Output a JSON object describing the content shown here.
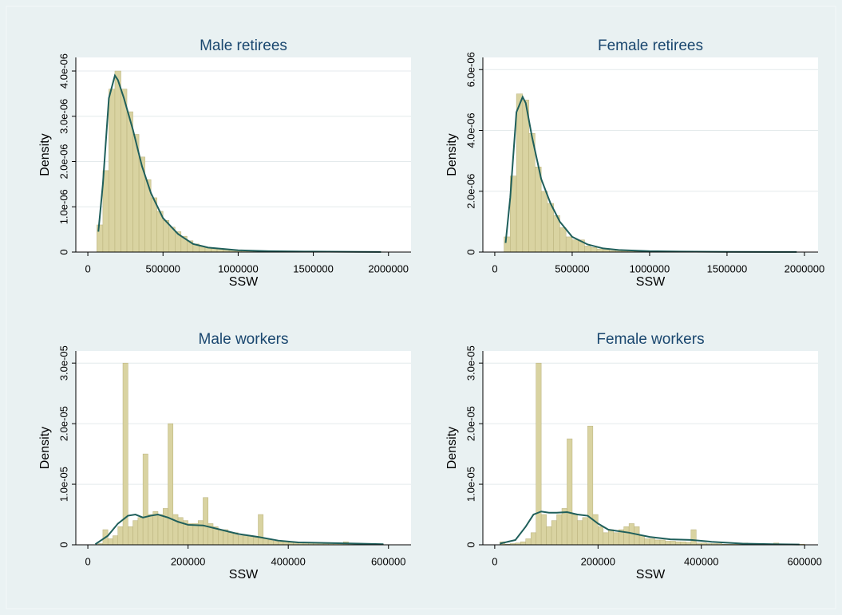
{
  "chart_data": [
    {
      "type": "histogram",
      "title": "Male retirees",
      "xlabel": "SSW",
      "ylabel": "Density",
      "bins": [
        60000,
        100000,
        140000,
        180000,
        220000,
        260000,
        300000,
        340000,
        380000,
        420000,
        460000,
        500000,
        540000,
        580000,
        620000,
        660000,
        700000,
        740000,
        780000,
        820000,
        860000,
        900000,
        940000,
        980000,
        1020000,
        1060000,
        1100000,
        1140000,
        1180000,
        1220000,
        1260000,
        1300000,
        1340000,
        1380000,
        1420000,
        1460000,
        1500000,
        1540000,
        1580000,
        1620000,
        1660000,
        1700000,
        1740000,
        1780000,
        1820000,
        1860000,
        1900000,
        1940000,
        1980000
      ],
      "values": [
        6e-07,
        1.8e-06,
        3.6e-06,
        4e-06,
        3.6e-06,
        3.1e-06,
        2.6e-06,
        2.1e-06,
        1.6e-06,
        1.2e-06,
        9e-07,
        7e-07,
        5.5e-07,
        4.5e-07,
        3.5e-07,
        2.5e-07,
        1.8e-07,
        1.3e-07,
        1e-07,
        8e-08,
        7e-08,
        5e-08,
        4e-08,
        4e-08,
        3e-08,
        3e-08,
        2e-08,
        2e-08,
        2e-08,
        1e-08,
        1e-08,
        1e-08,
        1e-08,
        5e-09,
        5e-09,
        5e-09,
        5e-09,
        5e-09,
        5e-09,
        5e-09,
        5e-09,
        5e-09,
        5e-09,
        5e-09,
        5e-09,
        5e-09,
        5e-09,
        5e-09
      ],
      "color": "#d9d3a1",
      "kde": {
        "x": [
          70000,
          100000,
          140000,
          180000,
          200000,
          240000,
          300000,
          360000,
          420000,
          500000,
          600000,
          700000,
          800000,
          1000000,
          1200000,
          1500000,
          1800000,
          1950000
        ],
        "values": [
          4.5e-07,
          1.5e-06,
          3.4e-06,
          3.9e-06,
          3.8e-06,
          3.4e-06,
          2.7e-06,
          1.9e-06,
          1.3e-06,
          7.5e-07,
          4e-07,
          1.8e-07,
          1e-07,
          4e-08,
          2e-08,
          1e-08,
          5e-09,
          3e-09
        ],
        "color": "#1f5f5b"
      },
      "xlim": [
        -80000,
        2150000
      ],
      "ylim": [
        0,
        4.3e-06
      ],
      "xticks": [
        0,
        500000,
        1000000,
        1500000,
        2000000
      ],
      "yticks": [
        0,
        {
          "value": 1e-06,
          "label": "1.0e-06"
        },
        {
          "value": 2e-06,
          "label": "2.0e-06"
        },
        {
          "value": 3e-06,
          "label": "3.0e-06"
        },
        {
          "value": 4e-06,
          "label": "4.0e-06"
        }
      ],
      "grid": true
    },
    {
      "type": "histogram",
      "title": "Female retirees",
      "xlabel": "SSW",
      "ylabel": "Density",
      "bins": [
        60000,
        100000,
        140000,
        180000,
        220000,
        260000,
        300000,
        340000,
        380000,
        420000,
        460000,
        500000,
        540000,
        580000,
        620000,
        660000,
        700000,
        740000,
        780000,
        820000,
        860000,
        900000,
        940000,
        980000,
        1020000,
        1060000,
        1100000,
        1140000,
        1180000,
        1220000,
        1260000,
        1300000,
        1340000,
        1380000,
        1420000,
        1460000,
        1500000,
        1540000,
        1580000,
        1620000,
        1660000,
        1700000,
        1740000,
        1780000,
        1820000,
        1860000,
        1900000,
        1940000,
        1980000
      ],
      "values": [
        5e-07,
        2.5e-06,
        5.2e-06,
        5e-06,
        3.9e-06,
        2.8e-06,
        2e-06,
        1.6e-06,
        1.2e-06,
        8e-07,
        5e-07,
        4e-07,
        4e-07,
        2e-07,
        1.5e-07,
        1e-07,
        8e-08,
        5e-08,
        4e-08,
        3e-08,
        3e-08,
        2e-08,
        2e-08,
        2e-08,
        1e-08,
        1e-08,
        1e-08,
        1e-08,
        1e-08,
        1e-08,
        5e-09,
        5e-09,
        5e-09,
        5e-09,
        5e-09,
        5e-09,
        5e-09,
        5e-09,
        5e-09,
        5e-09,
        5e-09,
        5e-09,
        5e-09,
        5e-09,
        5e-09,
        5e-09,
        5e-09,
        5e-09
      ],
      "color": "#d9d3a1",
      "kde": {
        "x": [
          70000,
          100000,
          140000,
          180000,
          200000,
          240000,
          300000,
          360000,
          420000,
          500000,
          600000,
          700000,
          800000,
          1000000,
          1200000,
          1500000,
          1800000,
          1950000
        ],
        "values": [
          3e-07,
          1.8e-06,
          4.6e-06,
          5.1e-06,
          4.9e-06,
          3.8e-06,
          2.4e-06,
          1.6e-06,
          1e-06,
          5e-07,
          2.5e-07,
          1.2e-07,
          7e-08,
          3e-08,
          1.5e-08,
          8e-09,
          4e-09,
          2e-09
        ],
        "color": "#1f5f5b"
      },
      "xlim": [
        -77000,
        2088000
      ],
      "ylim": [
        0,
        6.4e-06
      ],
      "xticks": [
        0,
        500000,
        1000000,
        1500000,
        2000000
      ],
      "yticks": [
        0,
        {
          "value": 2e-06,
          "label": "2.0e-06"
        },
        {
          "value": 4e-06,
          "label": "4.0e-06"
        },
        {
          "value": 6e-06,
          "label": "6.0e-06"
        }
      ],
      "grid": true
    },
    {
      "type": "histogram",
      "title": "Male workers",
      "xlabel": "SSW",
      "ylabel": "Density",
      "bins": [
        20000,
        30000,
        40000,
        50000,
        60000,
        70000,
        80000,
        90000,
        100000,
        110000,
        120000,
        130000,
        140000,
        150000,
        160000,
        170000,
        180000,
        190000,
        200000,
        210000,
        220000,
        230000,
        240000,
        250000,
        260000,
        270000,
        280000,
        290000,
        300000,
        310000,
        320000,
        330000,
        340000,
        350000,
        360000,
        370000,
        380000,
        390000,
        400000,
        410000,
        420000,
        430000,
        440000,
        450000,
        460000,
        470000,
        480000,
        490000,
        500000,
        510000,
        520000,
        530000,
        540000,
        550000,
        560000,
        570000,
        580000,
        590000
      ],
      "values": [
        2e-07,
        2.5e-06,
        1e-06,
        1.5e-06,
        3e-06,
        3e-05,
        3e-06,
        4e-06,
        4.5e-06,
        1.5e-05,
        5e-06,
        5.5e-06,
        5e-06,
        6e-06,
        2e-05,
        5e-06,
        4.5e-06,
        4e-06,
        3.5e-06,
        3.5e-06,
        4e-06,
        7.8e-06,
        3.5e-06,
        3e-06,
        2.5e-06,
        2.5e-06,
        2e-06,
        2e-06,
        1.5e-06,
        1.5e-06,
        1.5e-06,
        1.2e-06,
        5e-06,
        1e-06,
        8e-07,
        6e-07,
        5e-07,
        5e-07,
        4e-07,
        4e-07,
        3e-07,
        3e-07,
        3e-07,
        3e-07,
        3e-07,
        2e-07,
        3e-07,
        2e-07,
        2e-07,
        5e-07,
        2e-07,
        1e-07,
        1e-07,
        1e-07,
        1e-07,
        1e-07,
        1e-07
      ],
      "color": "#d9d3a1",
      "kde": {
        "x": [
          15000,
          40000,
          60000,
          80000,
          95000,
          110000,
          125000,
          140000,
          160000,
          180000,
          200000,
          230000,
          260000,
          300000,
          340000,
          380000,
          420000,
          480000,
          540000,
          590000
        ],
        "values": [
          1e-07,
          1.5e-06,
          3.5e-06,
          4.8e-06,
          5e-06,
          4.5e-06,
          4.8e-06,
          5e-06,
          4.5e-06,
          3.8e-06,
          3.3e-06,
          3.2e-06,
          2.6e-06,
          1.8e-06,
          1.3e-06,
          7e-07,
          4e-07,
          3e-07,
          2e-07,
          1e-07
        ],
        "color": "#1f5f5b"
      },
      "xlim": [
        -24000,
        645000
      ],
      "ylim": [
        0,
        3.2e-05
      ],
      "xticks": [
        0,
        200000,
        400000,
        600000
      ],
      "yticks": [
        0,
        {
          "value": 1e-05,
          "label": "1.0e-05"
        },
        {
          "value": 2e-05,
          "label": "2.0e-05"
        },
        {
          "value": 3e-05,
          "label": "3.0e-05"
        }
      ],
      "grid": true
    },
    {
      "type": "histogram",
      "title": "Female workers",
      "xlabel": "SSW",
      "ylabel": "Density",
      "bins": [
        10000,
        20000,
        30000,
        40000,
        50000,
        60000,
        70000,
        80000,
        90000,
        100000,
        110000,
        120000,
        130000,
        140000,
        150000,
        160000,
        170000,
        180000,
        190000,
        200000,
        210000,
        220000,
        230000,
        240000,
        250000,
        260000,
        270000,
        280000,
        290000,
        300000,
        310000,
        320000,
        330000,
        340000,
        350000,
        360000,
        370000,
        380000,
        390000,
        400000,
        410000,
        420000,
        430000,
        440000,
        450000,
        460000,
        470000,
        480000,
        490000,
        500000,
        510000,
        520000,
        530000,
        540000,
        550000,
        560000,
        570000,
        580000,
        590000,
        600000
      ],
      "values": [
        5e-07,
        1e-07,
        2e-07,
        3e-07,
        5e-07,
        1e-06,
        2e-06,
        3e-05,
        5e-06,
        3e-06,
        4e-06,
        5e-06,
        6e-06,
        1.75e-05,
        5e-06,
        4e-06,
        4.5e-06,
        1.96e-05,
        5e-06,
        3e-06,
        2e-06,
        2.5e-06,
        2e-06,
        2.5e-06,
        3e-06,
        3.5e-06,
        3e-06,
        1.5e-06,
        1e-06,
        1e-06,
        8e-07,
        8e-07,
        6e-07,
        6e-07,
        5e-07,
        5e-07,
        4e-07,
        2.5e-06,
        3e-07,
        3e-07,
        2e-07,
        2e-07,
        2e-07,
        1e-07,
        1e-07,
        1e-07,
        1e-07,
        3e-07,
        1e-07,
        1e-07,
        1e-07,
        1e-07,
        1e-07,
        3e-07,
        1e-07,
        1e-07,
        1e-07,
        1e-07,
        1e-07
      ],
      "color": "#d9d3a1",
      "kde": {
        "x": [
          10000,
          40000,
          60000,
          75000,
          90000,
          105000,
          120000,
          140000,
          160000,
          180000,
          200000,
          220000,
          260000,
          300000,
          340000,
          380000,
          420000,
          480000,
          540000,
          590000
        ],
        "values": [
          2e-07,
          8e-07,
          3e-06,
          5e-06,
          5.5e-06,
          5.3e-06,
          5.3e-06,
          5.4e-06,
          5e-06,
          4.8e-06,
          3.5e-06,
          2.5e-06,
          2e-06,
          1.3e-06,
          9e-07,
          8e-07,
          5e-07,
          2e-07,
          1e-07,
          5e-08
        ],
        "color": "#1f5f5b"
      },
      "xlim": [
        -23000,
        626000
      ],
      "ylim": [
        0,
        3.2e-05
      ],
      "xticks": [
        0,
        200000,
        400000,
        600000
      ],
      "yticks": [
        0,
        {
          "value": 1e-05,
          "label": "1.0e-05"
        },
        {
          "value": 2e-05,
          "label": "2.0e-05"
        },
        {
          "value": 3e-05,
          "label": "3.0e-05"
        }
      ],
      "grid": true
    }
  ]
}
